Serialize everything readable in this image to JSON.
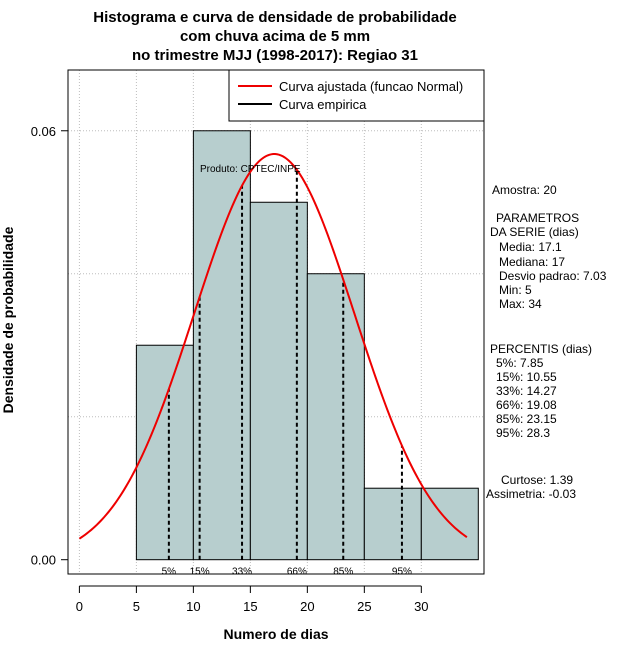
{
  "chart_data": {
    "type": "bar",
    "title": [
      "Histograma e curva de densidade de probabilidade",
      "com chuva acima de 5 mm",
      "no trimestre MJJ (1998-2017): Regiao 31"
    ],
    "xlabel": "Numero de dias",
    "ylabel": "Densidade de probabilidade",
    "xlim": [
      -1,
      35.5
    ],
    "ylim": [
      -0.002,
      0.0685
    ],
    "x_ticks": [
      0,
      5,
      10,
      15,
      20,
      25,
      30
    ],
    "y_ticks": [
      0.0,
      0.06
    ],
    "y_tick_labels": [
      "0.00",
      "0.06"
    ],
    "grid": true,
    "bins": [
      {
        "start": 5,
        "end": 10,
        "density": 0.03
      },
      {
        "start": 10,
        "end": 15,
        "density": 0.06
      },
      {
        "start": 15,
        "end": 20,
        "density": 0.05
      },
      {
        "start": 20,
        "end": 25,
        "density": 0.04
      },
      {
        "start": 25,
        "end": 30,
        "density": 0.01
      },
      {
        "start": 30,
        "end": 35,
        "density": 0.01
      }
    ],
    "bar_color": "#b7cece",
    "normal_curve": {
      "mean": 17.1,
      "sd": 7.03,
      "x_from": 0,
      "x_to": 34,
      "color": "#ee0000"
    },
    "percentiles": [
      {
        "label": "5%",
        "x": 7.85
      },
      {
        "label": "15%",
        "x": 10.55
      },
      {
        "label": "33%",
        "x": 14.27
      },
      {
        "label": "66%",
        "x": 19.08
      },
      {
        "label": "85%",
        "x": 23.15
      },
      {
        "label": "95%",
        "x": 28.3
      }
    ],
    "legend": {
      "position": "top-right",
      "entries": [
        {
          "label": "Curva ajustada (funcao Normal)",
          "color": "#ee0000"
        },
        {
          "label": "Curva empirica",
          "color": "#000000"
        }
      ]
    },
    "annotation": "Produto: CPTEC/INPE"
  },
  "stats_panel": [
    "Amostra: 20",
    "PARAMETROS",
    "DA SERIE (dias)",
    "Media: 17.1",
    "Mediana: 17",
    "Desvio padrao: 7.03",
    "Min: 5",
    "Max: 34",
    "PERCENTIS (dias)",
    "5%: 7.85",
    "15%: 10.55",
    "33%: 14.27",
    "66%: 19.08",
    "85%: 23.15",
    "95%: 28.3",
    "Curtose: 1.39",
    "Assimetria: -0.03"
  ]
}
